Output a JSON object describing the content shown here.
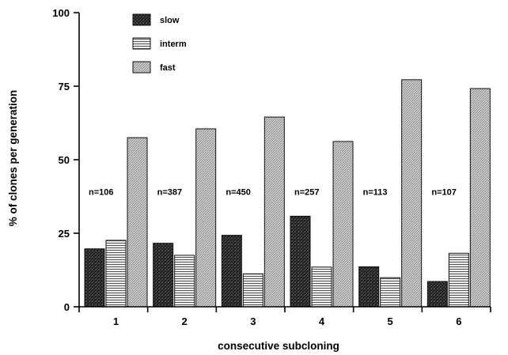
{
  "chart_data": {
    "type": "bar",
    "title": "",
    "xlabel": "consecutive subcloning",
    "ylabel": "% of clones per generation",
    "ylim": [
      0,
      100
    ],
    "yticks": [
      0,
      25,
      50,
      75,
      100
    ],
    "categories": [
      "1",
      "2",
      "3",
      "4",
      "5",
      "6"
    ],
    "annotations": [
      "n=106",
      "n=387",
      "n=450",
      "n=257",
      "n=113",
      "n=107"
    ],
    "legend_position": "top-left",
    "series": [
      {
        "name": "slow",
        "color": "#2b2b2b",
        "pattern": "dark",
        "values": [
          19.7,
          21.6,
          24.3,
          30.8,
          13.6,
          8.6
        ]
      },
      {
        "name": "interm",
        "color": "#d6d6d6",
        "pattern": "horizontal",
        "values": [
          22.6,
          17.5,
          11.2,
          13.5,
          9.9,
          18.2
        ]
      },
      {
        "name": "fast",
        "color": "#c4c4c4",
        "pattern": "diagonal",
        "values": [
          57.5,
          60.5,
          64.5,
          56.2,
          77.2,
          74.2
        ]
      }
    ]
  }
}
